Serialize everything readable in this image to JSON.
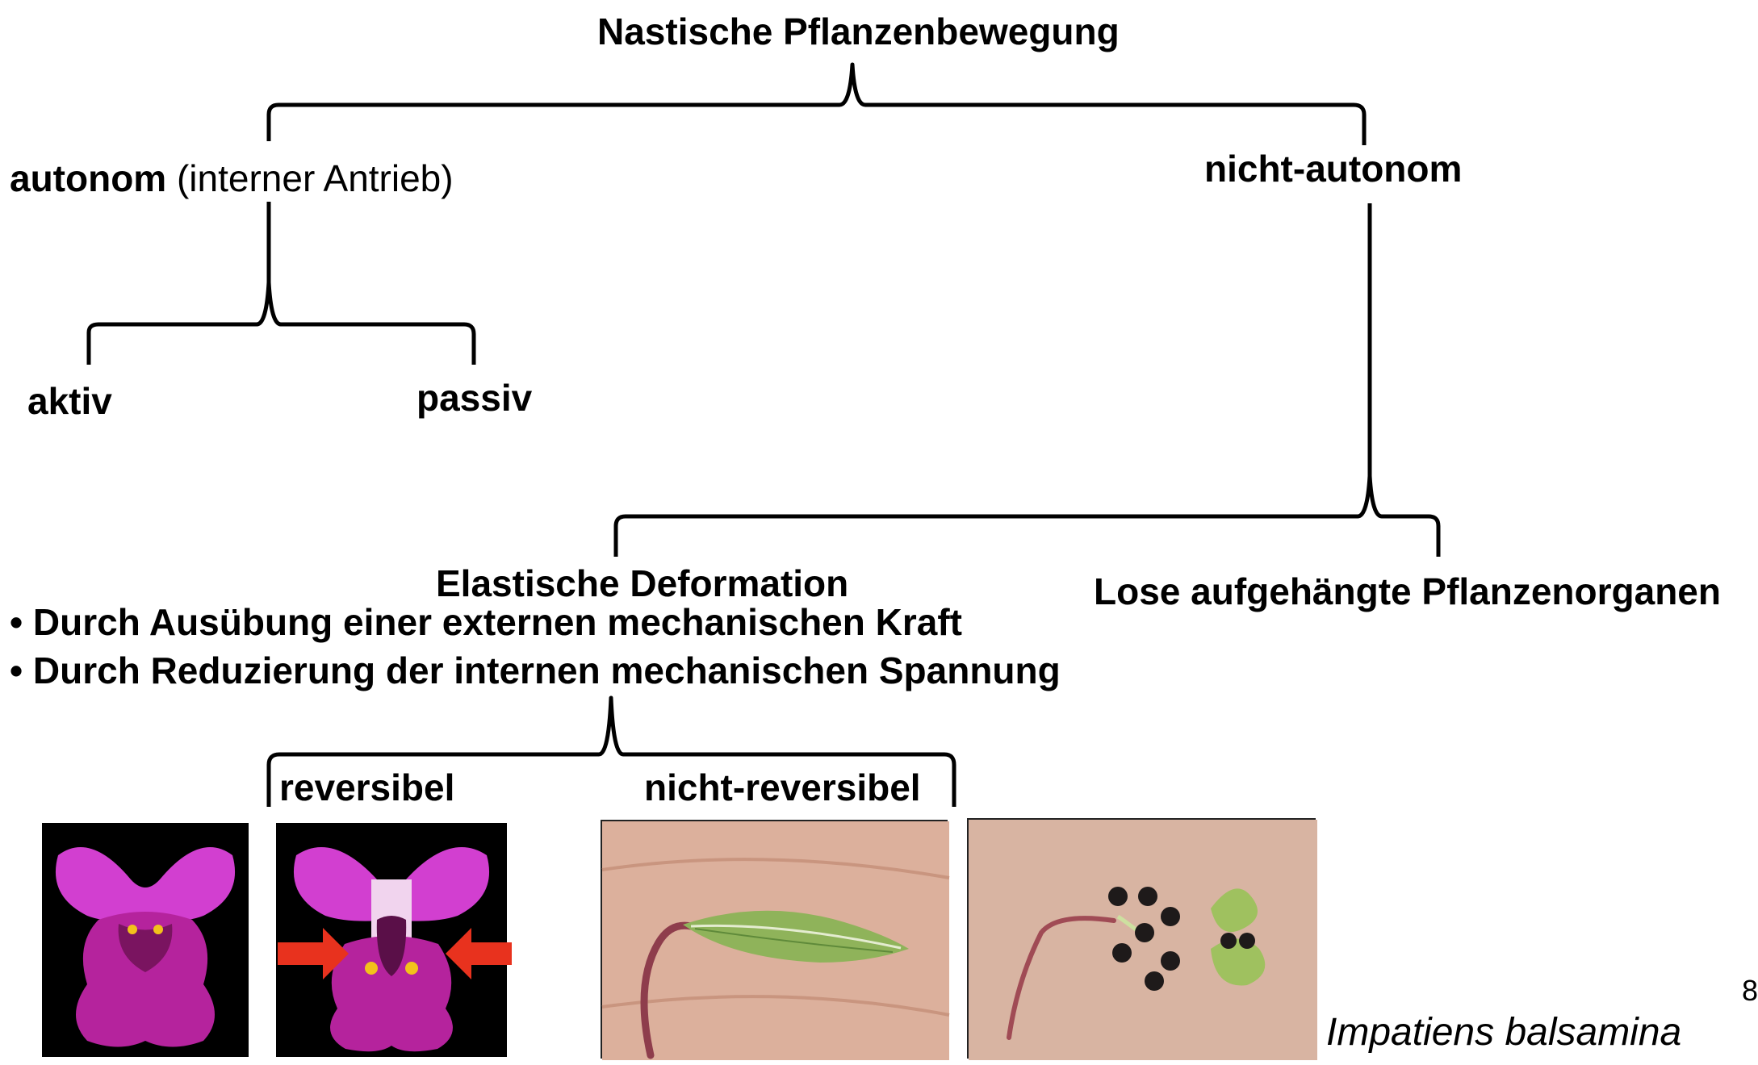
{
  "diagram": {
    "root": "Nastische Pflanzenbewegung",
    "autonom": {
      "bold": "autonom",
      "paren": "(interner Antrieb)"
    },
    "nicht_autonom": "nicht-autonom",
    "aktiv": "aktiv",
    "passiv": "passiv",
    "elastische_deformation": "Elastische Deformation",
    "lose": "Lose aufgehängte Pflanzenorganen",
    "bullets": [
      "• Durch Ausübung einer externen mechanischen Kraft",
      "• Durch Reduzierung der internen mechanischen Spannung"
    ],
    "reversibel": "reversibel",
    "nicht_reversibel": "nicht-reversibel",
    "species": "Impatiens balsamina",
    "page_number": "8"
  },
  "colors": {
    "line": "#000000",
    "flower_pink": "#d23fd0",
    "arrow_red": "#e8321e",
    "palm": "#d9ac97",
    "pod_green": "#8fb35a"
  }
}
